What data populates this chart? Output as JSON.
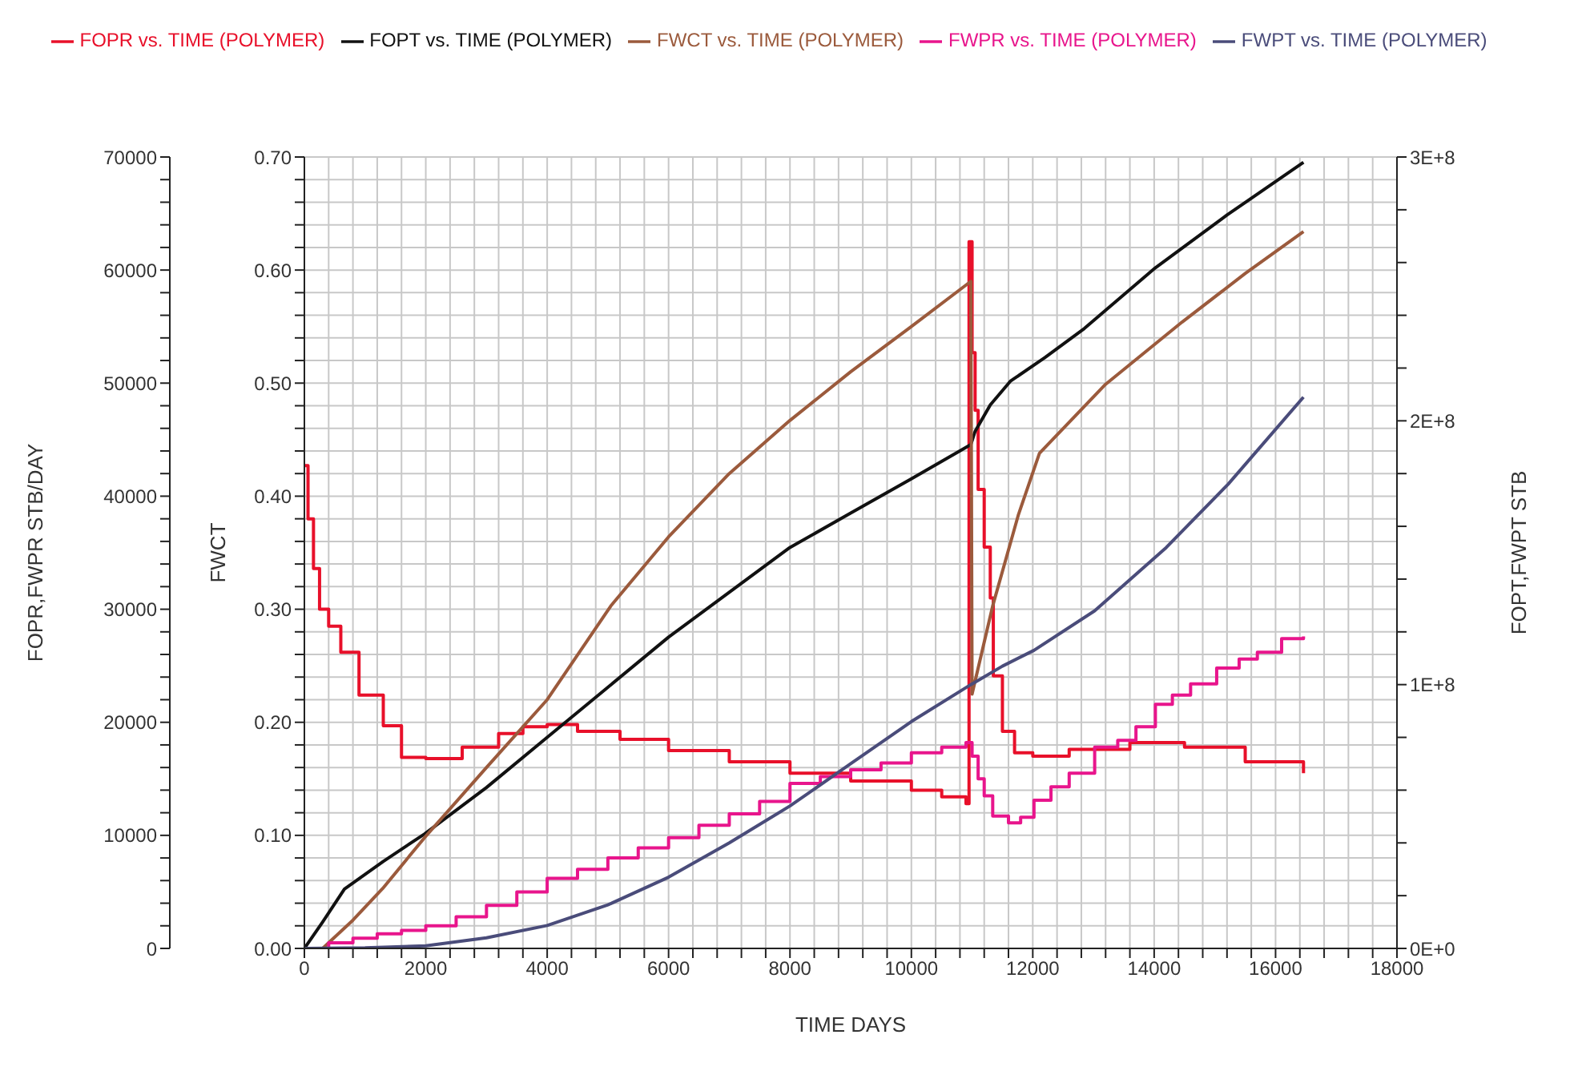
{
  "chart_data": {
    "type": "line",
    "xlabel": "TIME   DAYS",
    "ylabel": "FOPR,FWPR   STB/DAY",
    "y2label": "FWCT",
    "y3label": "FOPT,FWPT   STB",
    "xlim": [
      0,
      18000
    ],
    "xticks": [
      0,
      {
        "value": 400,
        "label": null
      },
      {
        "value": 800,
        "label": null
      },
      {
        "value": 1200,
        "label": null
      },
      {
        "value": 1600,
        "label": null
      },
      2000,
      {
        "value": 2400,
        "label": null
      },
      {
        "value": 2800,
        "label": null
      },
      {
        "value": 3200,
        "label": null
      },
      {
        "value": 3600,
        "label": null
      },
      4000,
      {
        "value": 4400,
        "label": null
      },
      {
        "value": 4800,
        "label": null
      },
      {
        "value": 5200,
        "label": null
      },
      {
        "value": 5600,
        "label": null
      },
      6000,
      {
        "value": 6400,
        "label": null
      },
      {
        "value": 6800,
        "label": null
      },
      {
        "value": 7200,
        "label": null
      },
      {
        "value": 7600,
        "label": null
      },
      8000,
      {
        "value": 8400,
        "label": null
      },
      {
        "value": 8800,
        "label": null
      },
      {
        "value": 9200,
        "label": null
      },
      {
        "value": 9600,
        "label": null
      },
      10000,
      {
        "value": 10400,
        "label": null
      },
      {
        "value": 10800,
        "label": null
      },
      {
        "value": 11200,
        "label": null
      },
      {
        "value": 11600,
        "label": null
      },
      12000,
      {
        "value": 12400,
        "label": null
      },
      {
        "value": 12800,
        "label": null
      },
      {
        "value": 13200,
        "label": null
      },
      {
        "value": 13600,
        "label": null
      },
      14000,
      {
        "value": 14400,
        "label": null
      },
      {
        "value": 14800,
        "label": null
      },
      {
        "value": 15200,
        "label": null
      },
      {
        "value": 15600,
        "label": null
      },
      16000,
      {
        "value": 16400,
        "label": null
      },
      {
        "value": 16800,
        "label": null
      },
      {
        "value": 17200,
        "label": null
      },
      {
        "value": 17600,
        "label": null
      },
      18000
    ],
    "ylim": [
      0,
      70000
    ],
    "yticks": [
      0,
      {
        "value": 2000,
        "label": null
      },
      {
        "value": 4000,
        "label": null
      },
      {
        "value": 6000,
        "label": null
      },
      {
        "value": 8000,
        "label": null
      },
      10000,
      {
        "value": 12000,
        "label": null
      },
      {
        "value": 14000,
        "label": null
      },
      {
        "value": 16000,
        "label": null
      },
      {
        "value": 18000,
        "label": null
      },
      20000,
      {
        "value": 22000,
        "label": null
      },
      {
        "value": 24000,
        "label": null
      },
      {
        "value": 26000,
        "label": null
      },
      {
        "value": 28000,
        "label": null
      },
      30000,
      {
        "value": 32000,
        "label": null
      },
      {
        "value": 34000,
        "label": null
      },
      {
        "value": 36000,
        "label": null
      },
      {
        "value": 38000,
        "label": null
      },
      40000,
      {
        "value": 42000,
        "label": null
      },
      {
        "value": 44000,
        "label": null
      },
      {
        "value": 46000,
        "label": null
      },
      {
        "value": 48000,
        "label": null
      },
      50000,
      {
        "value": 52000,
        "label": null
      },
      {
        "value": 54000,
        "label": null
      },
      {
        "value": 56000,
        "label": null
      },
      {
        "value": 58000,
        "label": null
      },
      60000,
      {
        "value": 62000,
        "label": null
      },
      {
        "value": 64000,
        "label": null
      },
      {
        "value": 66000,
        "label": null
      },
      {
        "value": 68000,
        "label": null
      },
      70000
    ],
    "y2lim": [
      0,
      0.7
    ],
    "y2ticks": [
      {
        "value": 0,
        "label": "0.00"
      },
      {
        "value": 0.02,
        "label": null
      },
      {
        "value": 0.04,
        "label": null
      },
      {
        "value": 0.06,
        "label": null
      },
      {
        "value": 0.08,
        "label": null
      },
      {
        "value": 0.1,
        "label": "0.10"
      },
      {
        "value": 0.12,
        "label": null
      },
      {
        "value": 0.14,
        "label": null
      },
      {
        "value": 0.16,
        "label": null
      },
      {
        "value": 0.18,
        "label": null
      },
      {
        "value": 0.2,
        "label": "0.20"
      },
      {
        "value": 0.22,
        "label": null
      },
      {
        "value": 0.24,
        "label": null
      },
      {
        "value": 0.26,
        "label": null
      },
      {
        "value": 0.28,
        "label": null
      },
      {
        "value": 0.3,
        "label": "0.30"
      },
      {
        "value": 0.32,
        "label": null
      },
      {
        "value": 0.34,
        "label": null
      },
      {
        "value": 0.36,
        "label": null
      },
      {
        "value": 0.38,
        "label": null
      },
      {
        "value": 0.4,
        "label": "0.40"
      },
      {
        "value": 0.42,
        "label": null
      },
      {
        "value": 0.44,
        "label": null
      },
      {
        "value": 0.46,
        "label": null
      },
      {
        "value": 0.48,
        "label": null
      },
      {
        "value": 0.5,
        "label": "0.50"
      },
      {
        "value": 0.52,
        "label": null
      },
      {
        "value": 0.54,
        "label": null
      },
      {
        "value": 0.56,
        "label": null
      },
      {
        "value": 0.58,
        "label": null
      },
      {
        "value": 0.6,
        "label": "0.60"
      },
      {
        "value": 0.62,
        "label": null
      },
      {
        "value": 0.64,
        "label": null
      },
      {
        "value": 0.66,
        "label": null
      },
      {
        "value": 0.68,
        "label": null
      },
      {
        "value": 0.7,
        "label": "0.70"
      }
    ],
    "y3lim": [
      0,
      300000000
    ],
    "y3ticks": [
      {
        "value": 0,
        "label": "0E+0"
      },
      {
        "value": 20000000,
        "label": null
      },
      {
        "value": 40000000,
        "label": null
      },
      {
        "value": 60000000,
        "label": null
      },
      {
        "value": 80000000,
        "label": null
      },
      {
        "value": 100000000,
        "label": "1E+8"
      },
      {
        "value": 120000000,
        "label": null
      },
      {
        "value": 140000000,
        "label": null
      },
      {
        "value": 160000000,
        "label": null
      },
      {
        "value": 180000000,
        "label": null
      },
      {
        "value": 200000000,
        "label": "2E+8"
      },
      {
        "value": 220000000,
        "label": null
      },
      {
        "value": 240000000,
        "label": null
      },
      {
        "value": 260000000,
        "label": null
      },
      {
        "value": 280000000,
        "label": null
      },
      {
        "value": 300000000,
        "label": "3E+8"
      }
    ],
    "grid": true,
    "legend": "top",
    "series": [
      {
        "name": "FOPR vs. TIME (POLYMER)",
        "type": "step",
        "color": "#e8102a",
        "x": [
          0,
          60,
          150,
          250,
          400,
          600,
          900,
          1300,
          1600,
          2000,
          2600,
          3200,
          3600,
          4000,
          4500,
          5200,
          6000,
          7000,
          8000,
          9000,
          10000,
          10500,
          10900,
          10950,
          11000,
          11050,
          11100,
          11200,
          11300,
          11350,
          11500,
          11700,
          12000,
          12600,
          13600,
          14500,
          15500,
          16460
        ],
        "values": [
          42700,
          38000,
          33600,
          30000,
          28500,
          26200,
          22400,
          19700,
          16900,
          16800,
          17800,
          19000,
          19600,
          19800,
          19200,
          18500,
          17500,
          16500,
          15500,
          14800,
          14000,
          13400,
          12800,
          62500,
          52700,
          47600,
          40600,
          35500,
          31000,
          24100,
          19200,
          17300,
          17000,
          17600,
          18200,
          17800,
          16500,
          15500
        ]
      },
      {
        "name": "FOPT vs. TIME (POLYMER)",
        "color": "#111111",
        "axis": "y3",
        "x": [
          0,
          300,
          660,
          1300,
          1980,
          3000,
          4000,
          5000,
          6000,
          7000,
          8000,
          9000,
          10000,
          10980,
          11050,
          11300,
          11630,
          12200,
          12850,
          14020,
          15200,
          16460
        ],
        "values": [
          0,
          10000000,
          22500000,
          33000000,
          43400000,
          61000000,
          80000000,
          99000000,
          118000000,
          135000000,
          152000000,
          165000000,
          178000000,
          191000000,
          196000000,
          206000000,
          215000000,
          224000000,
          235000000,
          258000000,
          278000000,
          298000000
        ]
      },
      {
        "name": "FWCT vs. TIME (POLYMER)",
        "color": "#9b5a3c",
        "axis": "y2",
        "x": [
          0,
          300,
          800,
          1290,
          1980,
          3000,
          4000,
          5050,
          6000,
          7000,
          8000,
          9000,
          10000,
          10980,
          11000,
          11340,
          11760,
          12110,
          13200,
          14460,
          15500,
          16460
        ],
        "values": [
          0,
          0,
          0.025,
          0.053,
          0.098,
          0.16,
          0.22,
          0.303,
          0.364,
          0.42,
          0.467,
          0.51,
          0.55,
          0.59,
          0.225,
          0.303,
          0.383,
          0.438,
          0.499,
          0.554,
          0.597,
          0.634
        ]
      },
      {
        "name": "FWPR vs. TIME (POLYMER)",
        "type": "step",
        "color": "#e8158c",
        "x": [
          0,
          400,
          800,
          1200,
          1600,
          2000,
          2500,
          3000,
          3500,
          4000,
          4500,
          5000,
          5500,
          6000,
          6500,
          7000,
          7500,
          8000,
          8500,
          9000,
          9500,
          10000,
          10500,
          10900,
          11000,
          11100,
          11200,
          11340,
          11600,
          11800,
          12020,
          12300,
          12600,
          13020,
          13400,
          13700,
          14020,
          14300,
          14600,
          15030,
          15400,
          15700,
          16100,
          16460
        ],
        "values": [
          0,
          500,
          900,
          1300,
          1600,
          2000,
          2800,
          3800,
          5000,
          6200,
          7000,
          8000,
          8900,
          9800,
          10900,
          11900,
          13000,
          14600,
          15200,
          15800,
          16400,
          17300,
          17800,
          18200,
          17000,
          15000,
          13500,
          11700,
          11100,
          11600,
          13100,
          14300,
          15500,
          17800,
          18400,
          19600,
          21600,
          22400,
          23400,
          24800,
          25600,
          26200,
          27400,
          27600
        ]
      },
      {
        "name": "FWPT vs. TIME (POLYMER)",
        "color": "#4a4c7a",
        "axis": "y3",
        "x": [
          0,
          1000,
          2000,
          3000,
          4000,
          5000,
          6000,
          7000,
          8000,
          9000,
          10000,
          10980,
          11500,
          12020,
          13020,
          14200,
          15220,
          16460
        ],
        "values": [
          0,
          200000,
          1000000,
          4000000,
          8700000,
          16500000,
          27000000,
          40000000,
          54000000,
          70000000,
          86000000,
          100000000,
          107000000,
          113000000,
          128000000,
          152000000,
          176000000,
          209000000
        ]
      }
    ]
  }
}
